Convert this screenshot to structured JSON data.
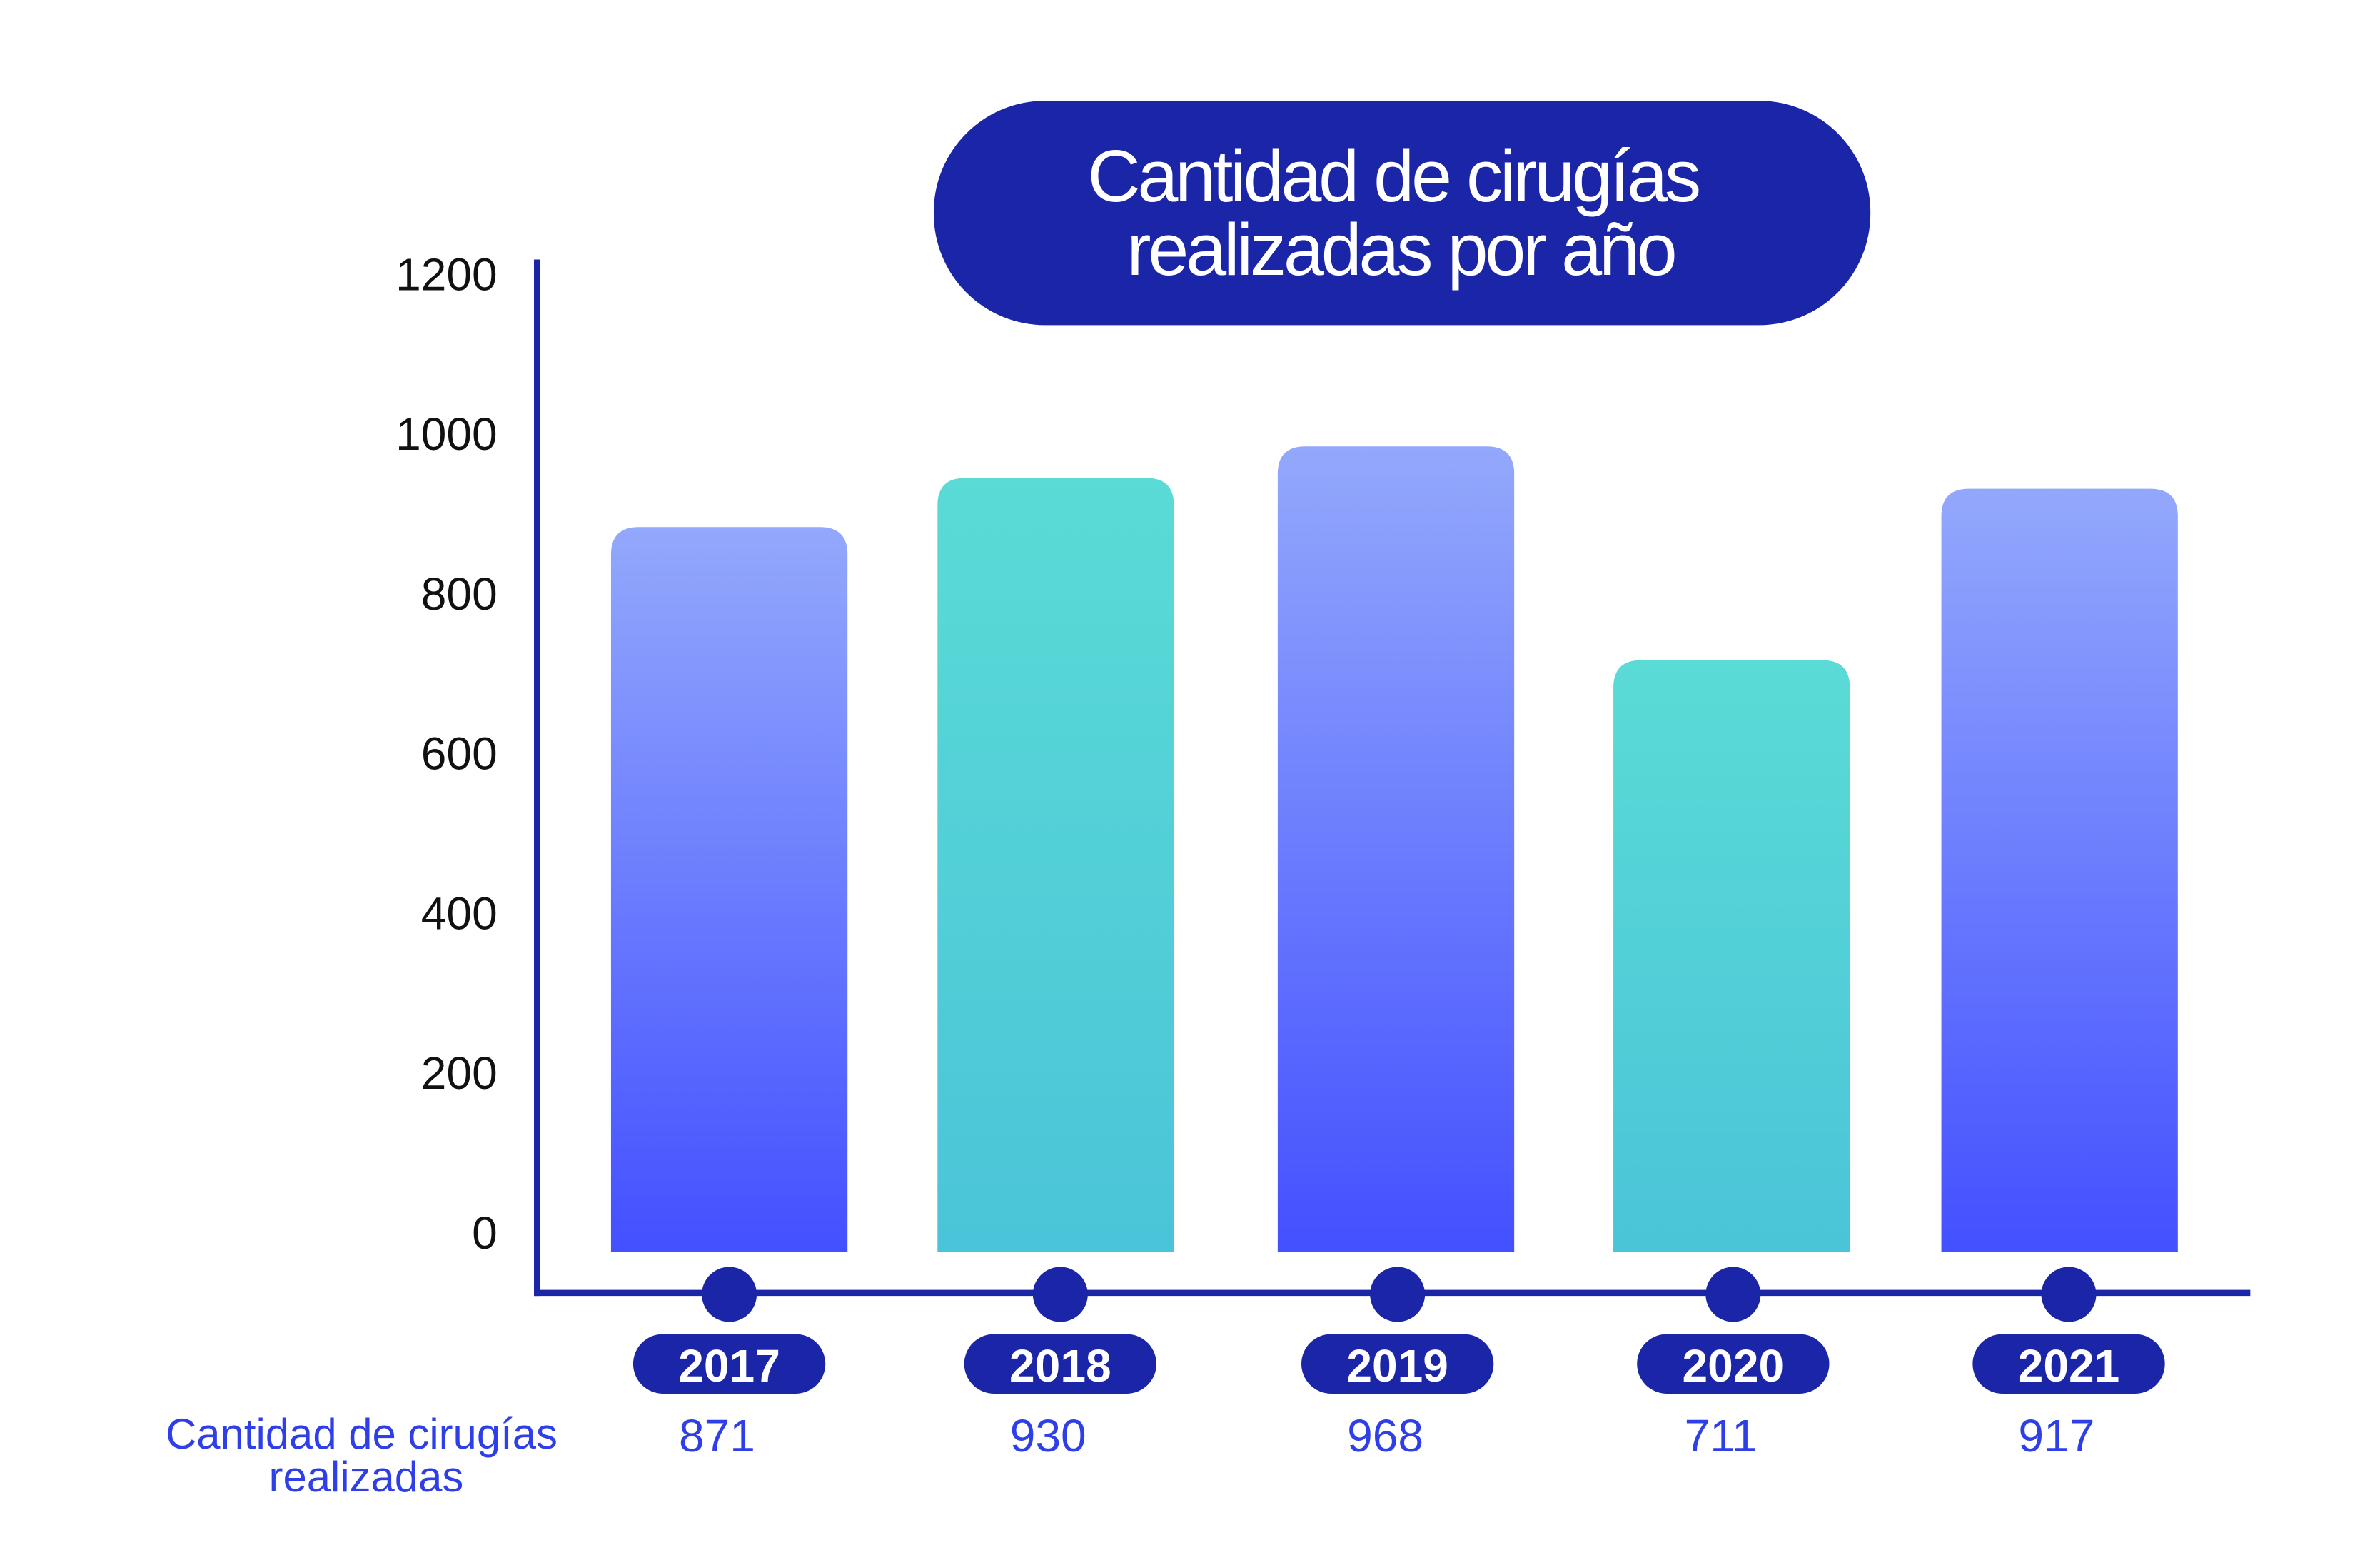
{
  "chart_data": {
    "type": "bar",
    "title": "Cantidad de cirugías realizadas por año",
    "title_lines": [
      "Cantidad de cirugías",
      "realizadas por año"
    ],
    "categories": [
      "2017",
      "2018",
      "2019",
      "2020",
      "2021"
    ],
    "values": [
      871,
      930,
      968,
      711,
      917
    ],
    "series": [
      {
        "name": "Cantidad de cirugías realizadas",
        "values": [
          871,
          930,
          968,
          711,
          917
        ]
      }
    ],
    "row_label_lines": [
      "Cantidad de cirugías",
      "realizadas"
    ],
    "yticks": [
      0,
      200,
      400,
      600,
      800,
      1000,
      1200
    ],
    "ylim": [
      0,
      1200
    ],
    "xlabel": "",
    "ylabel": "",
    "grid": false,
    "colors": {
      "dark": "#1a25a8",
      "blue_top": "#93a8fc",
      "blue_bottom": "#4350ff",
      "teal_top": "#5adbd6",
      "teal_bottom": "#4ac4d8",
      "value_text": "#2e3fe8"
    }
  }
}
